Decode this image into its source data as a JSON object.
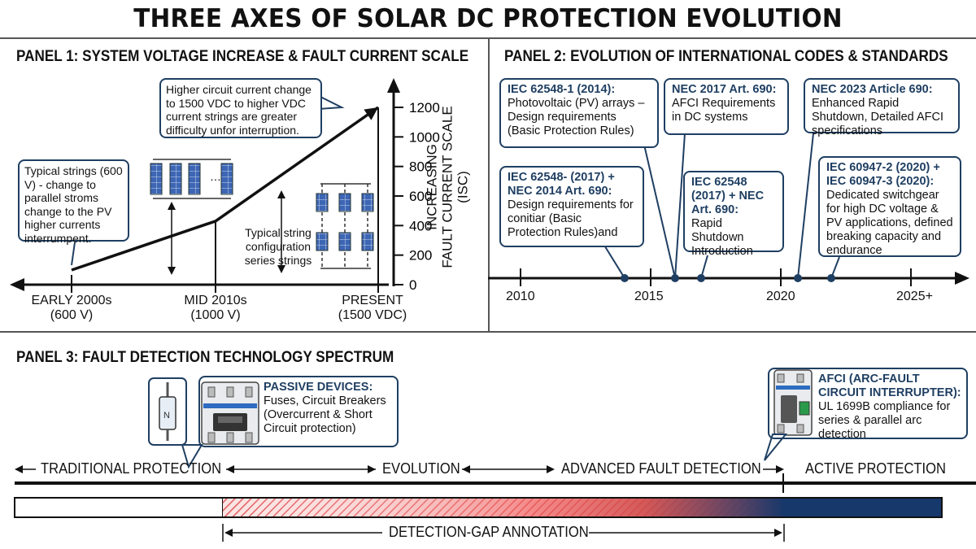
{
  "title": "THREE AXES OF SOLAR DC PROTECTION EVOLUTION",
  "panel1": {
    "heading": "PANEL 1: SYSTEM VOLTAGE INCREASE & FAULT CURRENT SCALE",
    "callout_top": "Higher circuit current change to 1500 VDC to higher VDC current strings are greater difficulty unfor interruption.",
    "callout_left": "Typical strings (600 V) - change to parallel stroms change to the PV higher currents interrumpent.",
    "note_config": "Typical string configuration series strings",
    "x_labels": [
      {
        "line1": "EARLY 2000s",
        "line2": "(600 V)"
      },
      {
        "line1": "MID 2010s",
        "line2": "(1000 V)"
      },
      {
        "line1": "PRESENT",
        "line2": "(1500 VDC)"
      }
    ],
    "y_ticks": [
      "0",
      "200",
      "400",
      "600",
      "800",
      "1000",
      "1200"
    ],
    "y_label_line1": "INCREASING",
    "y_label_line2": "FAULT CURRENT SCALE (ISC)",
    "trend": [
      0,
      430,
      1200
    ]
  },
  "panel2": {
    "heading": "PANEL 2: EVOLUTION OF INTERNATIONAL CODES & STANDARDS",
    "years": [
      "2010",
      "2015",
      "2020",
      "2025+"
    ],
    "callouts": [
      {
        "head": "IEC 62548-1 (2014):",
        "body": "Photovoltaic (PV) arrays – Design requirements (Basic Protection Rules)"
      },
      {
        "head": "NEC 2017 Art. 690:",
        "body": "AFCI Requirements in DC systems"
      },
      {
        "head": "NEC 2023 Article 690:",
        "body": "Enhanced Rapid Shutdown, Detailed AFCI specifications"
      },
      {
        "head": "IEC 62548- (2017) + NEC 2014 Art. 690:",
        "body": "Design requirements for conitiar (Basic Protection Rules)and"
      },
      {
        "head": "IEC 62548 (2017) + NEC Art. 690:",
        "body": "Rapid Shutdown Introduction"
      },
      {
        "head": "IEC 60947-2 (2020) + IEC 60947-3 (2020):",
        "body": "Dedicated switchgear for high DC voltage & PV applications, defined breaking capacity and endurance"
      }
    ]
  },
  "panel3": {
    "heading": "PANEL 3: FAULT DETECTION TECHNOLOGY SPECTRUM",
    "passive_head": "PASSIVE DEVICES:",
    "passive_body": "Fuses, Circuit Breakers (Overcurrent & Short Circuit protection)",
    "afci_head": "AFCI",
    "afci_head_rest": "(ARC-FAULT CIRCUIT INTERRUPTER):",
    "afci_body": "UL 1699B compliance for series & parallel arc detection",
    "spectrum_labels": [
      "TRADITIONAL PROTECTION",
      "EVOLUTION",
      "ADVANCED FAULT DETECTION",
      "ACTIVE PROTECTION"
    ],
    "gap_label": "DETECTION-GAP ANNOTATION",
    "colors": {
      "navy": "#17386b",
      "red": "#e0393a",
      "hatch": "#e25a5a",
      "outline": "#1f3f62"
    }
  }
}
